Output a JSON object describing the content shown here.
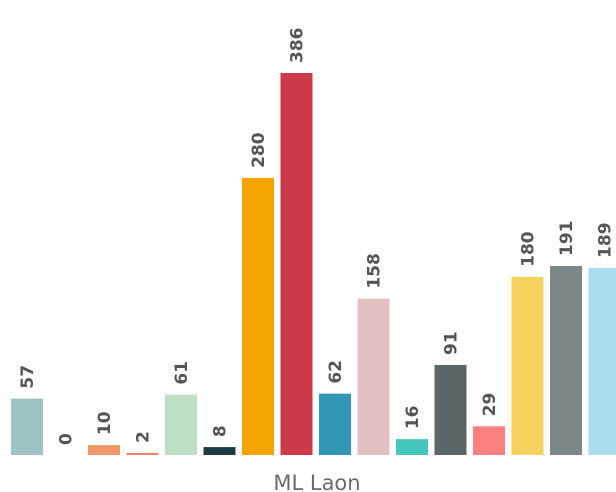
{
  "chart_data": {
    "type": "bar",
    "category": "ML Laon",
    "values": [
      57,
      0,
      10,
      2,
      61,
      8,
      280,
      386,
      62,
      158,
      16,
      91,
      29,
      180,
      191,
      189
    ],
    "colors": [
      "#9dc3c2",
      "#dde7ea",
      "#f2976a",
      "#f07f6a",
      "#bedfc4",
      "#1f3c44",
      "#f5a300",
      "#cc3a4a",
      "#3297b5",
      "#e2c0c2",
      "#45c6bb",
      "#5b6668",
      "#fb8080",
      "#f5d15e",
      "#7e8788",
      "#a8dcee"
    ],
    "value_labels": [
      "57",
      "0",
      "10",
      "2",
      "61",
      "8",
      "280",
      "386",
      "62",
      "158",
      "16",
      "91",
      "29",
      "180",
      "191",
      "189"
    ],
    "xlabel": "",
    "ylabel": "",
    "grid": false,
    "legend": "none"
  }
}
